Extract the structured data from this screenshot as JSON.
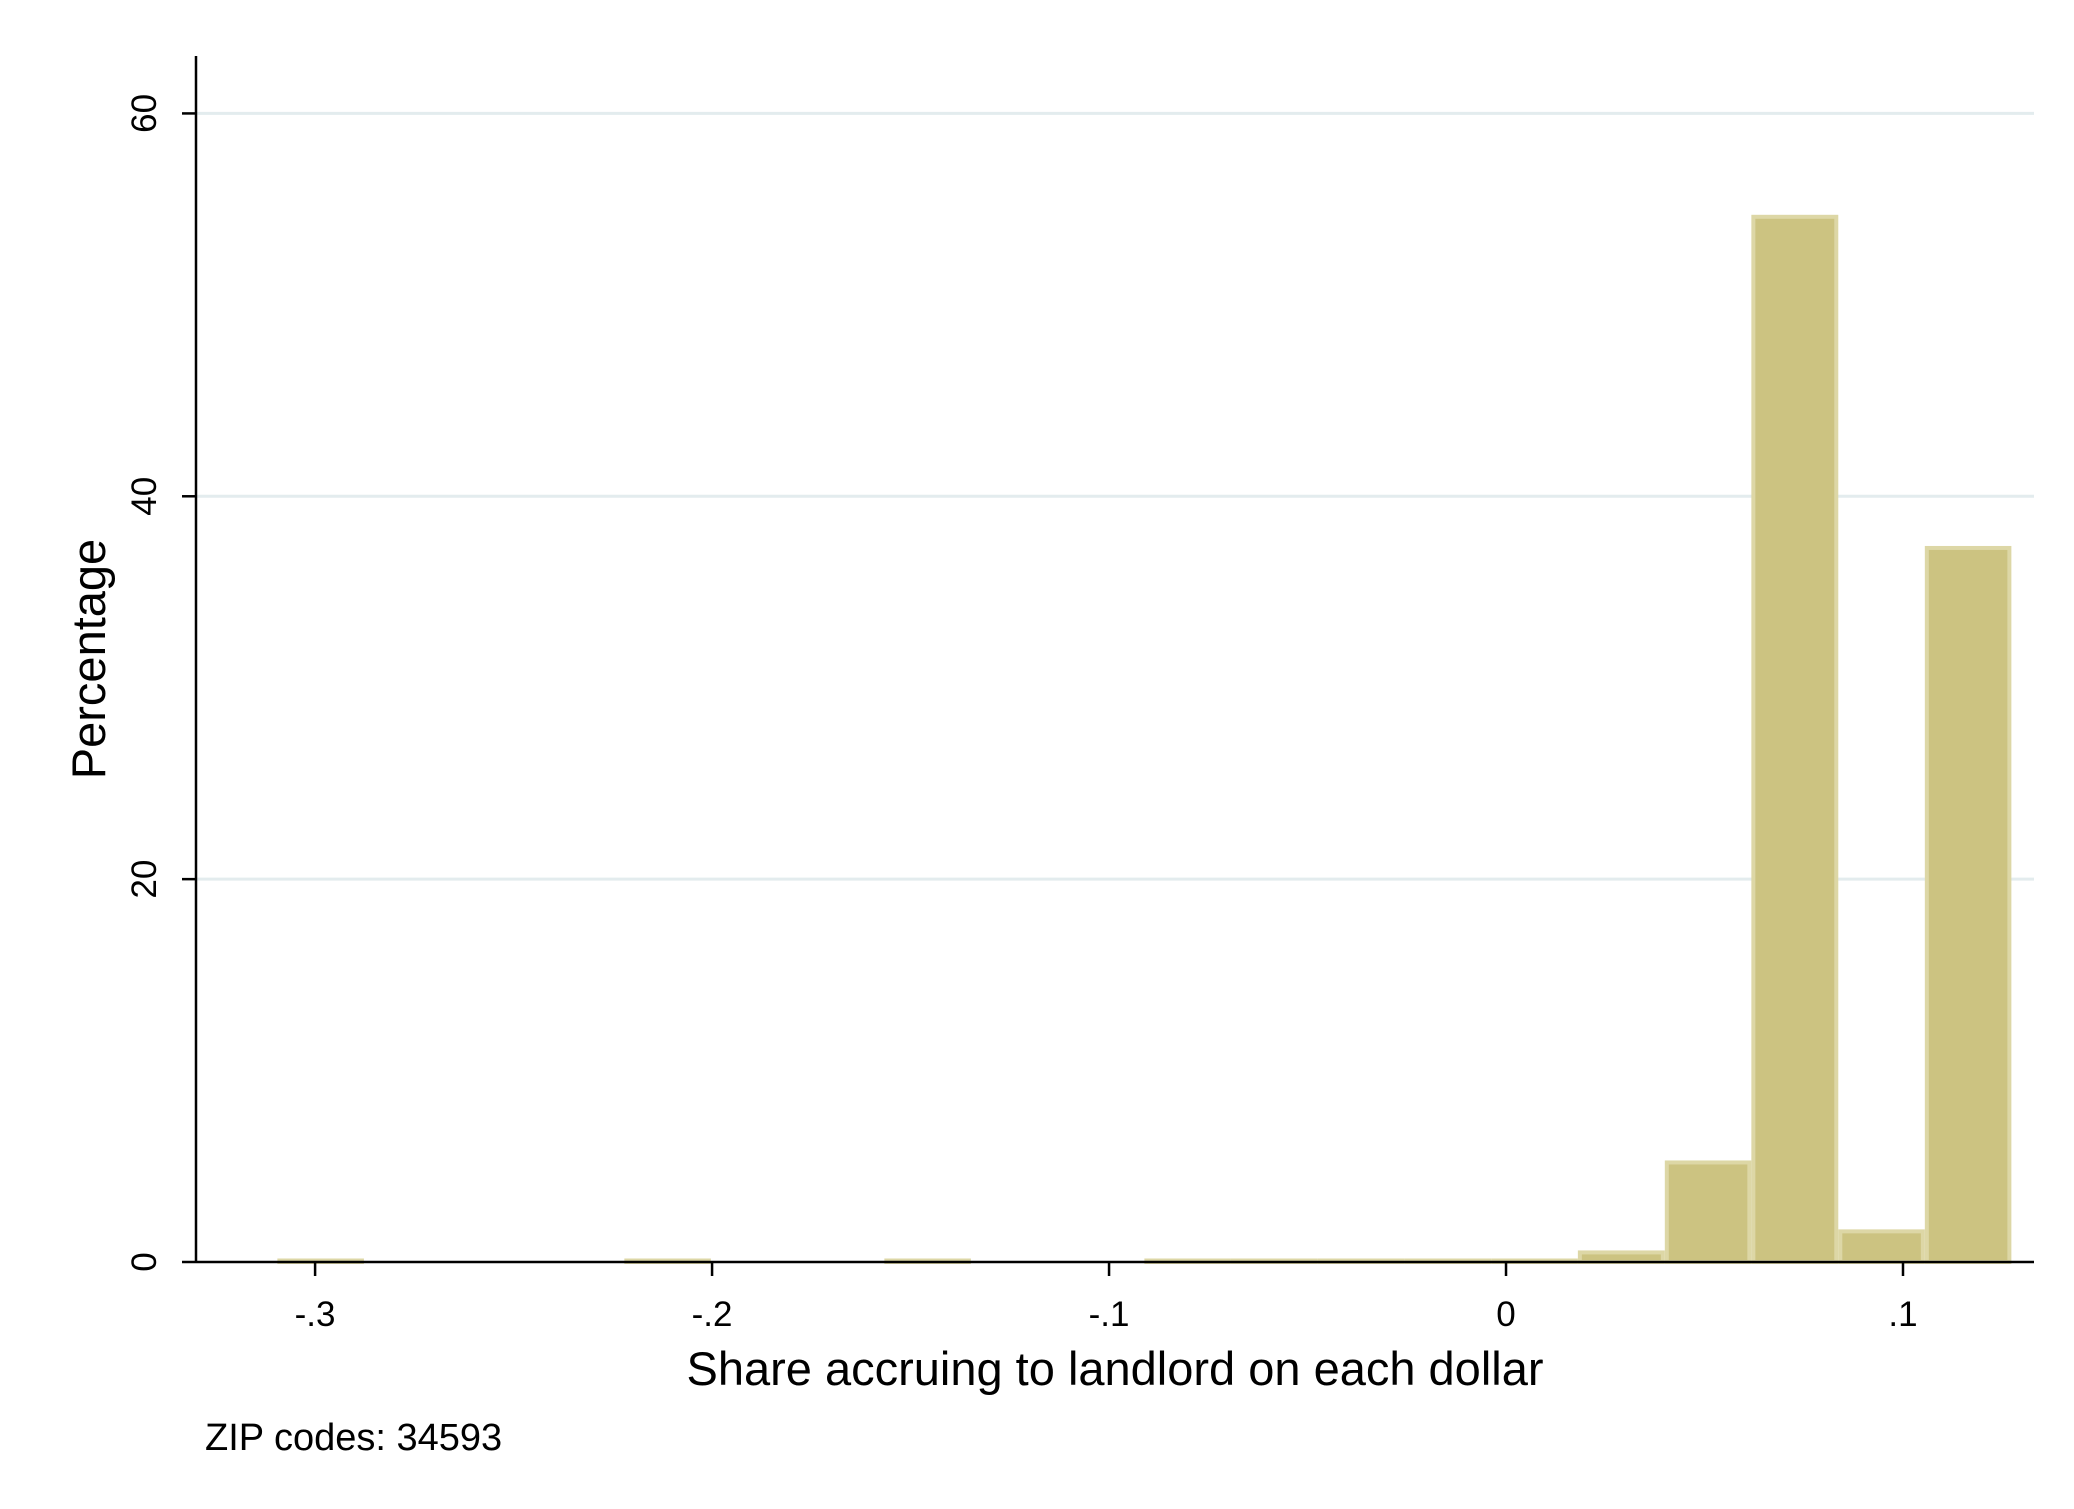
{
  "chart_data": {
    "type": "bar",
    "title": "",
    "xlabel": "Share accruing to landlord on each dollar",
    "ylabel": "Percentage",
    "note": "ZIP codes: 34593",
    "xlim": [
      -0.33,
      0.133
    ],
    "ylim": [
      0,
      63
    ],
    "x_ticks": [
      {
        "value": -0.3,
        "label": "-.3"
      },
      {
        "value": -0.2,
        "label": "-.2"
      },
      {
        "value": -0.1,
        "label": "-.1"
      },
      {
        "value": 0,
        "label": "0"
      },
      {
        "value": 0.1,
        "label": ".1"
      }
    ],
    "y_ticks": [
      {
        "value": 0,
        "label": "0"
      },
      {
        "value": 20,
        "label": "20"
      },
      {
        "value": 40,
        "label": "40"
      },
      {
        "value": 60,
        "label": "60"
      }
    ],
    "grid": true,
    "bins": [
      {
        "x0": -0.3095,
        "x1": -0.2877,
        "value": 0.05
      },
      {
        "x0": -0.2221,
        "x1": -0.2003,
        "value": 0.05
      },
      {
        "x0": -0.1566,
        "x1": -0.1348,
        "value": 0.05
      },
      {
        "x0": -0.0911,
        "x1": -0.0693,
        "value": 0.02
      },
      {
        "x0": -0.0693,
        "x1": -0.0474,
        "value": 0.02
      },
      {
        "x0": -0.0474,
        "x1": -0.0256,
        "value": 0.02
      },
      {
        "x0": -0.0256,
        "x1": -0.0037,
        "value": 0.02
      },
      {
        "x0": -0.0037,
        "x1": 0.0181,
        "value": 0.05
      },
      {
        "x0": 0.0181,
        "x1": 0.04,
        "value": 0.5
      },
      {
        "x0": 0.04,
        "x1": 0.0618,
        "value": 5.2
      },
      {
        "x0": 0.0618,
        "x1": 0.0837,
        "value": 54.6
      },
      {
        "x0": 0.0837,
        "x1": 0.1055,
        "value": 1.6
      },
      {
        "x0": 0.1055,
        "x1": 0.1273,
        "value": 37.3
      }
    ],
    "colors": {
      "bar_fill": "#ccc381",
      "bar_outline": "#ddd7a6",
      "grid": "#e3ecee",
      "axis": "#000000"
    }
  }
}
